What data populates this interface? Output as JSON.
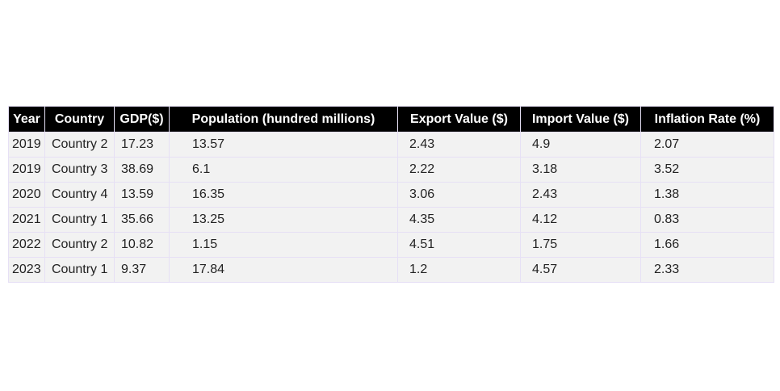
{
  "chart_data": {
    "type": "table",
    "columns": [
      "Year",
      "Country",
      "GDP($)",
      "Population (hundred millions)",
      "Export Value ($)",
      "Import Value ($)",
      "Inflation Rate (%)"
    ],
    "rows": [
      [
        "2019",
        "Country 2",
        "17.23",
        "13.57",
        "2.43",
        "4.9",
        "2.07"
      ],
      [
        "2019",
        "Country 3",
        "38.69",
        "6.1",
        "2.22",
        "3.18",
        "3.52"
      ],
      [
        "2020",
        "Country 4",
        "13.59",
        "16.35",
        "3.06",
        "2.43",
        "1.38"
      ],
      [
        "2021",
        "Country 1",
        "35.66",
        "13.25",
        "4.35",
        "4.12",
        "0.83"
      ],
      [
        "2022",
        "Country 2",
        "10.82",
        "1.15",
        "4.51",
        "1.75",
        "1.66"
      ],
      [
        "2023",
        "Country 1",
        "9.37",
        "17.84",
        "1.2",
        "4.57",
        "2.33"
      ]
    ],
    "header_background": "#000000",
    "header_text_color": "#ffffff",
    "cell_background": "#f2f2f2",
    "border_color": "#e6e0f5"
  }
}
